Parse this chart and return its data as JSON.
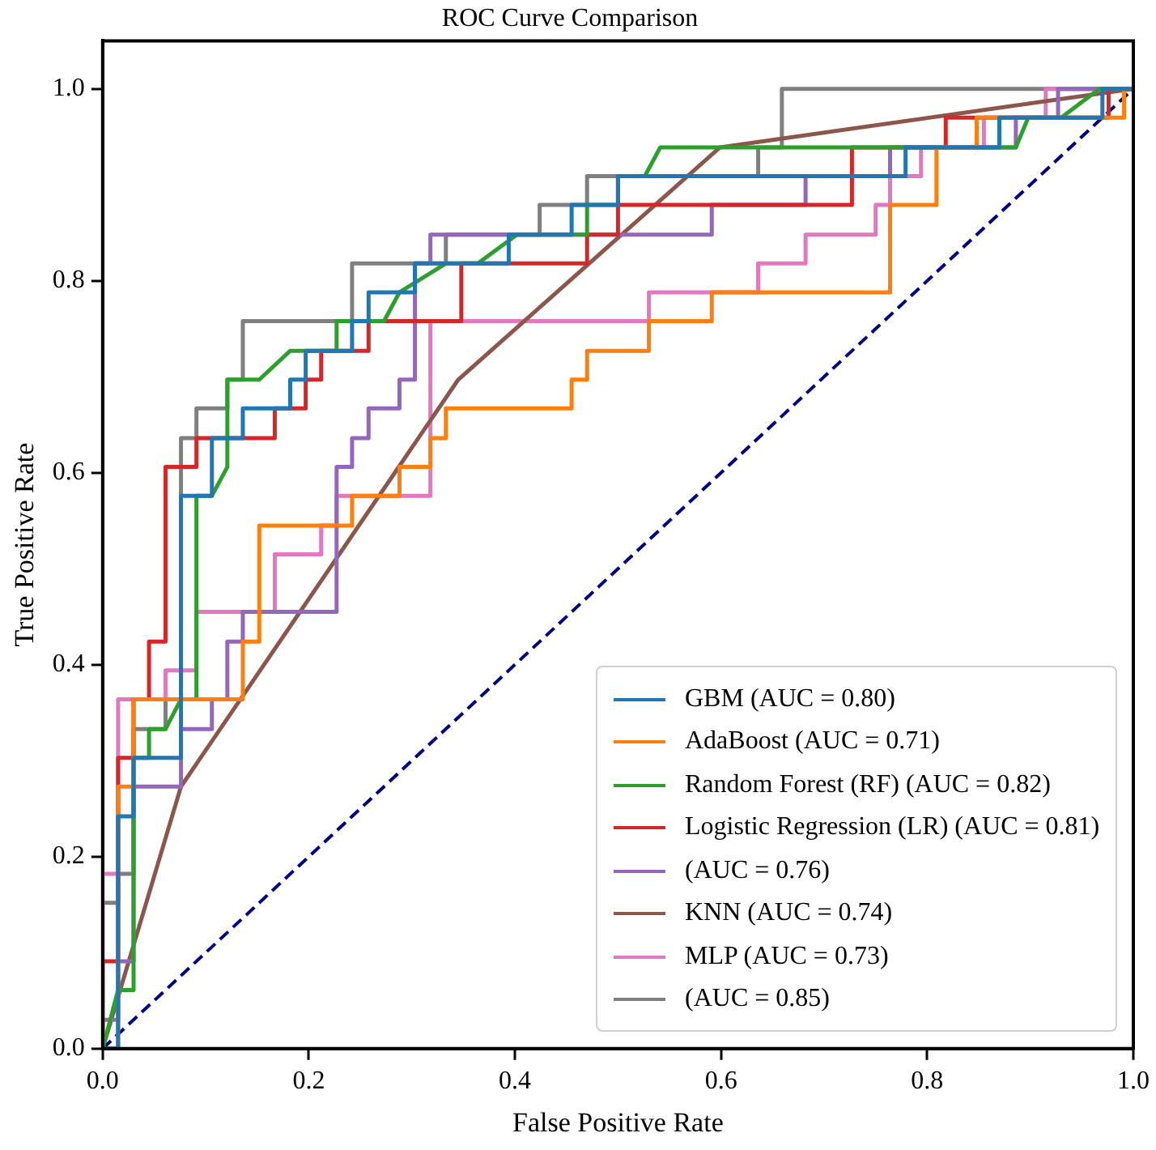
{
  "chart_data": {
    "type": "line",
    "title": "ROC Curve Comparison",
    "xlabel": "False Positive Rate",
    "ylabel": "True Positive Rate",
    "xlim": [
      0,
      1
    ],
    "ylim": [
      0,
      1.05
    ],
    "xticks": [
      {
        "value": 0,
        "label": "0.0"
      },
      {
        "value": 0.2,
        "label": "0.2"
      },
      {
        "value": 0.4,
        "label": "0.4"
      },
      {
        "value": 0.6,
        "label": "0.6"
      },
      {
        "value": 0.8,
        "label": "0.8"
      },
      {
        "value": 1,
        "label": "1.0"
      }
    ],
    "yticks": [
      {
        "value": 0,
        "label": "0.0"
      },
      {
        "value": 0.2,
        "label": "0.2"
      },
      {
        "value": 0.4,
        "label": "0.4"
      },
      {
        "value": 0.6,
        "label": "0.6"
      },
      {
        "value": 0.8,
        "label": "0.8"
      },
      {
        "value": 1,
        "label": "1.0"
      }
    ],
    "grid": false,
    "legend": "bottom right",
    "marker": "none",
    "line_style": "solid",
    "series": [
      {
        "name": "GBM (AUC = 0.80)",
        "color": "#1f77b4",
        "x": [
          0,
          0.015,
          0.015,
          0.03,
          0.03,
          0.076,
          0.076,
          0.106,
          0.106,
          0.136,
          0.136,
          0.182,
          0.182,
          0.197,
          0.197,
          0.242,
          0.242,
          0.258,
          0.258,
          0.303,
          0.303,
          0.394,
          0.394,
          0.455,
          0.455,
          0.5,
          0.5,
          0.779,
          0.779,
          0.87,
          0.87,
          0.97,
          0.97,
          1
        ],
        "values": [
          0,
          0,
          0.242,
          0.242,
          0.303,
          0.303,
          0.576,
          0.576,
          0.636,
          0.636,
          0.667,
          0.667,
          0.697,
          0.697,
          0.727,
          0.727,
          0.758,
          0.758,
          0.788,
          0.788,
          0.818,
          0.818,
          0.848,
          0.848,
          0.879,
          0.879,
          0.909,
          0.909,
          0.939,
          0.939,
          0.97,
          0.97,
          1,
          1
        ]
      },
      {
        "name": "AdaBoost (AUC = 0.71)",
        "color": "#ff7f0e",
        "x": [
          0,
          0.015,
          0.015,
          0.03,
          0.03,
          0.136,
          0.136,
          0.152,
          0.152,
          0.242,
          0.242,
          0.288,
          0.288,
          0.318,
          0.318,
          0.333,
          0.333,
          0.455,
          0.455,
          0.47,
          0.47,
          0.53,
          0.53,
          0.591,
          0.591,
          0.764,
          0.764,
          0.809,
          0.809,
          0.848,
          0.848,
          0.991,
          0.991,
          1
        ],
        "values": [
          0,
          0,
          0.273,
          0.273,
          0.364,
          0.364,
          0.424,
          0.424,
          0.545,
          0.545,
          0.576,
          0.576,
          0.606,
          0.606,
          0.636,
          0.636,
          0.667,
          0.667,
          0.697,
          0.697,
          0.727,
          0.727,
          0.758,
          0.758,
          0.788,
          0.788,
          0.879,
          0.879,
          0.939,
          0.939,
          0.97,
          0.97,
          1,
          1
        ]
      },
      {
        "name": "Random Forest (RF) (AUC = 0.82)",
        "color": "#2ca02c",
        "x": [
          0,
          0.015,
          0.03,
          0.03,
          0.045,
          0.045,
          0.061,
          0.076,
          0.091,
          0.091,
          0.106,
          0.121,
          0.121,
          0.152,
          0.182,
          0.227,
          0.227,
          0.273,
          0.288,
          0.333,
          0.364,
          0.402,
          0.47,
          0.47,
          0.5,
          0.5,
          0.526,
          0.541,
          0.886,
          0.898,
          0.93,
          0.967,
          1
        ],
        "values": [
          0,
          0.061,
          0.061,
          0.303,
          0.303,
          0.333,
          0.333,
          0.364,
          0.364,
          0.576,
          0.576,
          0.606,
          0.697,
          0.697,
          0.727,
          0.727,
          0.758,
          0.758,
          0.788,
          0.818,
          0.818,
          0.848,
          0.848,
          0.879,
          0.879,
          0.909,
          0.909,
          0.939,
          0.939,
          0.97,
          0.97,
          1,
          1
        ]
      },
      {
        "name": "Logistic Regression (LR) (AUC = 0.81)",
        "color": "#d62728",
        "x": [
          0,
          0,
          0.015,
          0.015,
          0.03,
          0.03,
          0.045,
          0.045,
          0.061,
          0.061,
          0.091,
          0.091,
          0.167,
          0.167,
          0.197,
          0.197,
          0.212,
          0.212,
          0.258,
          0.258,
          0.348,
          0.348,
          0.47,
          0.47,
          0.5,
          0.5,
          0.727,
          0.727,
          0.818,
          0.818,
          0.976,
          0.976,
          1
        ],
        "values": [
          0,
          0.091,
          0.091,
          0.303,
          0.303,
          0.364,
          0.364,
          0.424,
          0.424,
          0.606,
          0.606,
          0.636,
          0.636,
          0.667,
          0.667,
          0.697,
          0.697,
          0.727,
          0.727,
          0.758,
          0.758,
          0.818,
          0.818,
          0.848,
          0.848,
          0.879,
          0.879,
          0.939,
          0.939,
          0.97,
          0.97,
          1,
          1
        ]
      },
      {
        "name": "(AUC = 0.76)",
        "color": "#9467bd",
        "x": [
          0,
          0,
          0.015,
          0.015,
          0.03,
          0.03,
          0.076,
          0.076,
          0.106,
          0.106,
          0.121,
          0.121,
          0.136,
          0.136,
          0.227,
          0.227,
          0.242,
          0.242,
          0.258,
          0.258,
          0.288,
          0.288,
          0.303,
          0.303,
          0.318,
          0.318,
          0.591,
          0.591,
          0.682,
          0.682,
          0.764,
          0.764,
          0.886,
          0.886,
          0.927,
          0.927,
          1
        ],
        "values": [
          0,
          0.03,
          0.03,
          0.091,
          0.091,
          0.273,
          0.273,
          0.333,
          0.333,
          0.364,
          0.364,
          0.424,
          0.424,
          0.455,
          0.455,
          0.606,
          0.606,
          0.636,
          0.636,
          0.667,
          0.667,
          0.697,
          0.697,
          0.818,
          0.818,
          0.848,
          0.848,
          0.879,
          0.879,
          0.909,
          0.909,
          0.939,
          0.939,
          0.97,
          0.97,
          1,
          1
        ]
      },
      {
        "name": "KNN (AUC = 0.74)",
        "color": "#8c564b",
        "x": [
          0,
          0.076,
          0.345,
          0.599,
          1
        ],
        "values": [
          0,
          0.273,
          0.697,
          0.939,
          1
        ]
      },
      {
        "name": "MLP (AUC = 0.73)",
        "color": "#e377c2",
        "x": [
          0,
          0,
          0.015,
          0.015,
          0.061,
          0.061,
          0.091,
          0.091,
          0.167,
          0.167,
          0.212,
          0.212,
          0.227,
          0.227,
          0.318,
          0.318,
          0.53,
          0.53,
          0.636,
          0.636,
          0.682,
          0.682,
          0.75,
          0.75,
          0.764,
          0.764,
          0.794,
          0.794,
          0.855,
          0.855,
          0.915,
          0.915,
          1
        ],
        "values": [
          0,
          0.182,
          0.182,
          0.364,
          0.364,
          0.394,
          0.394,
          0.455,
          0.455,
          0.515,
          0.515,
          0.545,
          0.545,
          0.576,
          0.576,
          0.758,
          0.758,
          0.788,
          0.788,
          0.818,
          0.818,
          0.848,
          0.848,
          0.879,
          0.879,
          0.909,
          0.909,
          0.939,
          0.939,
          0.97,
          0.97,
          1,
          1
        ]
      },
      {
        "name": "(AUC = 0.85)",
        "color": "#7f7f7f",
        "x": [
          0,
          0,
          0.015,
          0.015,
          0.03,
          0.03,
          0.061,
          0.061,
          0.076,
          0.076,
          0.091,
          0.091,
          0.121,
          0.121,
          0.136,
          0.136,
          0.242,
          0.242,
          0.333,
          0.333,
          0.424,
          0.424,
          0.47,
          0.47,
          0.636,
          0.636,
          0.659,
          0.659,
          1
        ],
        "values": [
          0,
          0.152,
          0.152,
          0.182,
          0.182,
          0.333,
          0.333,
          0.364,
          0.364,
          0.636,
          0.636,
          0.667,
          0.667,
          0.697,
          0.697,
          0.758,
          0.758,
          0.818,
          0.818,
          0.848,
          0.848,
          0.879,
          0.879,
          0.909,
          0.909,
          0.939,
          0.939,
          1,
          1
        ]
      },
      {
        "color": "#000080",
        "line_style": "dashed",
        "x": [
          0,
          1
        ],
        "values": [
          0,
          1
        ]
      }
    ]
  }
}
